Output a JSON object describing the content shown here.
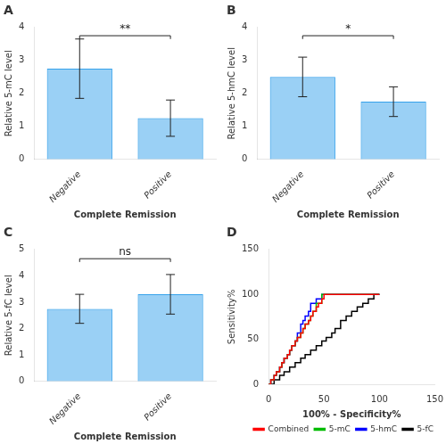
{
  "chart_data": [
    {
      "type": "bar",
      "title": "A",
      "x_label": "Complete Remission",
      "y_label": "Relative 5-mC level",
      "categories": [
        "Negative",
        "Positive"
      ],
      "values": [
        2.75,
        1.25
      ],
      "errors": [
        0.9,
        0.55
      ],
      "ylim": [
        0,
        4
      ],
      "yticks": [
        0,
        1,
        2,
        3,
        4
      ],
      "annotation": {
        "text": "**",
        "y": 3.75
      },
      "grid": false
    },
    {
      "type": "bar",
      "title": "B",
      "x_label": "Complete Remission",
      "y_label": "Relative 5-hmC level",
      "categories": [
        "Negative",
        "Positive"
      ],
      "values": [
        2.5,
        1.75
      ],
      "errors": [
        0.6,
        0.45
      ],
      "ylim": [
        0,
        4
      ],
      "yticks": [
        0,
        1,
        2,
        3,
        4
      ],
      "annotation": {
        "text": "*",
        "y": 3.75
      },
      "grid": false
    },
    {
      "type": "bar",
      "title": "C",
      "x_label": "Complete Remission",
      "y_label": "Relative 5-fC level",
      "categories": [
        "Negative",
        "Positive"
      ],
      "values": [
        2.75,
        3.3
      ],
      "errors": [
        0.55,
        0.75
      ],
      "ylim": [
        0,
        5
      ],
      "yticks": [
        0,
        1,
        2,
        3,
        4,
        5
      ],
      "annotation": {
        "text": "ns",
        "y": 4.65
      },
      "grid": false
    },
    {
      "type": "line",
      "title": "D",
      "x_label": "100% - Specificity%",
      "y_label": "Sensitivity%",
      "xlim": [
        0,
        150
      ],
      "ylim": [
        0,
        150
      ],
      "xticks": [
        0,
        50,
        100,
        150
      ],
      "yticks": [
        0,
        50,
        100,
        150
      ],
      "legend": "lower right",
      "grid": false,
      "series": [
        {
          "name": "Combined",
          "color": "#FF0000",
          "x": [
            0,
            2,
            2,
            5,
            5,
            7,
            7,
            10,
            10,
            12,
            12,
            14,
            14,
            17,
            17,
            19,
            19,
            21,
            21,
            24,
            24,
            26,
            26,
            29,
            29,
            31,
            31,
            33,
            33,
            36,
            36,
            38,
            38,
            40,
            40,
            43,
            43,
            45,
            45,
            48,
            48,
            50,
            50,
            52,
            52,
            55,
            55,
            57,
            57,
            60,
            60,
            62,
            62,
            65,
            65,
            100
          ],
          "values": [
            0,
            0,
            5,
            5,
            10,
            10,
            14,
            14,
            19,
            19,
            24,
            24,
            29,
            29,
            33,
            33,
            38,
            38,
            43,
            43,
            48,
            48,
            52,
            52,
            57,
            57,
            62,
            62,
            67,
            67,
            71,
            71,
            76,
            76,
            81,
            81,
            86,
            86,
            90,
            90,
            95,
            95,
            100,
            100,
            100,
            100,
            100,
            100,
            100,
            100,
            100,
            100,
            100,
            100,
            100,
            100
          ]
        },
        {
          "name": "5-mC",
          "color": "#00BB00",
          "x": [
            0,
            2,
            2,
            5,
            5,
            7,
            7,
            10,
            10,
            12,
            12,
            14,
            14,
            17,
            17,
            19,
            19,
            21,
            21,
            24,
            24,
            26,
            26,
            29,
            29,
            31,
            31,
            33,
            33,
            36,
            36,
            38,
            38,
            40,
            40,
            43,
            43,
            48,
            48,
            52,
            52,
            57,
            57,
            60,
            60,
            65,
            65,
            100
          ],
          "values": [
            0,
            0,
            5,
            5,
            10,
            10,
            14,
            14,
            19,
            19,
            24,
            24,
            29,
            29,
            33,
            33,
            38,
            38,
            43,
            43,
            48,
            48,
            52,
            52,
            57,
            57,
            62,
            62,
            67,
            67,
            71,
            71,
            76,
            76,
            81,
            81,
            90,
            90,
            100,
            100,
            100,
            100,
            100,
            100,
            100,
            100,
            100,
            100
          ]
        },
        {
          "name": "5-hmC",
          "color": "#0000FF",
          "x": [
            0,
            2,
            2,
            5,
            5,
            7,
            7,
            10,
            10,
            12,
            12,
            14,
            14,
            17,
            17,
            19,
            19,
            21,
            21,
            24,
            24,
            26,
            26,
            29,
            29,
            31,
            31,
            33,
            33,
            36,
            36,
            38,
            38,
            43,
            43,
            48,
            48,
            52,
            52,
            57,
            57,
            60,
            60,
            65,
            65,
            100
          ],
          "values": [
            0,
            0,
            5,
            5,
            10,
            10,
            14,
            14,
            19,
            19,
            24,
            24,
            29,
            29,
            33,
            33,
            38,
            38,
            43,
            43,
            48,
            48,
            57,
            57,
            67,
            67,
            71,
            71,
            76,
            76,
            81,
            81,
            90,
            90,
            95,
            95,
            100,
            100,
            100,
            100,
            100,
            100,
            100,
            100,
            100,
            100
          ]
        },
        {
          "name": "5-fC",
          "color": "#000000",
          "x": [
            0,
            5,
            5,
            10,
            10,
            14,
            14,
            19,
            19,
            24,
            24,
            29,
            29,
            33,
            33,
            38,
            38,
            43,
            43,
            48,
            48,
            52,
            52,
            57,
            57,
            60,
            60,
            65,
            65,
            70,
            70,
            75,
            75,
            80,
            80,
            85,
            85,
            90,
            90,
            95,
            95,
            100,
            100
          ],
          "values": [
            0,
            0,
            5,
            5,
            10,
            10,
            14,
            14,
            19,
            19,
            24,
            24,
            29,
            29,
            33,
            33,
            38,
            38,
            43,
            43,
            48,
            48,
            52,
            52,
            57,
            57,
            62,
            62,
            71,
            71,
            76,
            76,
            81,
            81,
            86,
            86,
            90,
            90,
            95,
            95,
            100,
            100,
            100
          ]
        }
      ]
    }
  ]
}
